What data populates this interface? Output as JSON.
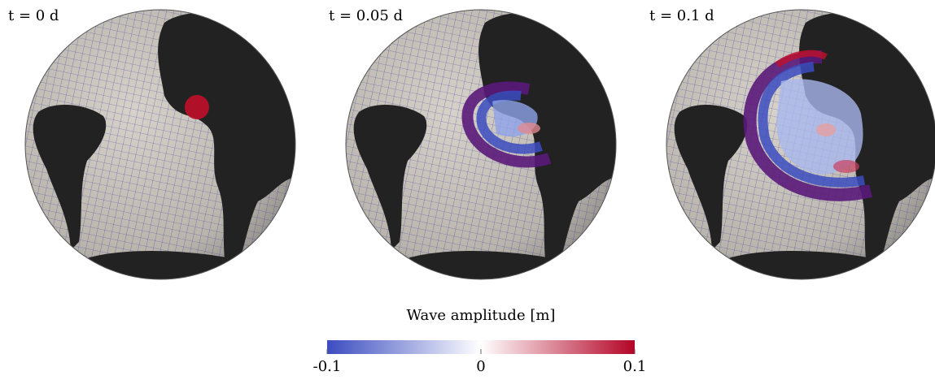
{
  "panels": [
    {
      "label": "t = 0 d"
    },
    {
      "label": "t = 0.05 d"
    },
    {
      "label": "t = 0.1 d"
    }
  ],
  "colorbar": {
    "title": "Wave amplitude [m]",
    "range": [
      -0.1,
      0.1
    ],
    "ticks": [
      -0.1,
      0,
      0.1
    ],
    "colors": [
      "#3b4cc0",
      "#ffffff",
      "#b40426"
    ]
  }
}
